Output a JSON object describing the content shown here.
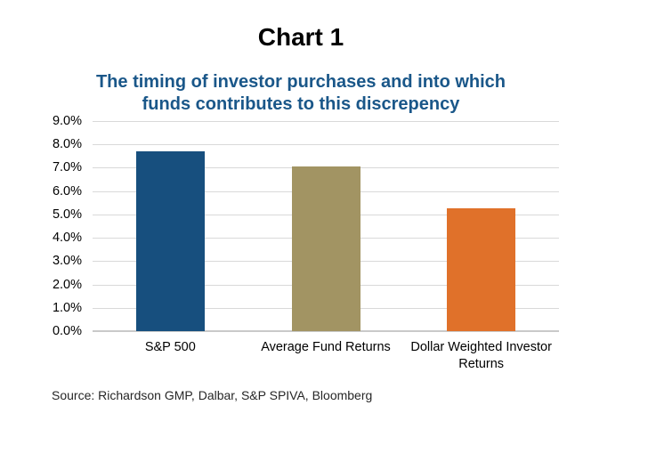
{
  "page": {
    "title": "Chart 1",
    "subtitle": "The timing of investor purchases and into which funds contributes to this discrepency",
    "source_note": "Source: Richardson GMP, Dalbar, S&P SPIVA, Bloomberg"
  },
  "colors": {
    "background": "#FFFFFF",
    "title_text": "#000000",
    "subtitle_text": "#1A5789",
    "axis_text": "#000000",
    "gridline": "#D9D9D9",
    "axis_line": "#C9C9C9"
  },
  "chart_data": {
    "type": "bar",
    "title": "Chart 1",
    "subtitle": "The timing of investor purchases and into which funds contributes to this discrepency",
    "categories": [
      "S&P 500",
      "Average Fund Returns",
      "Dollar Weighted Investor Returns"
    ],
    "values": [
      7.7,
      7.05,
      5.25
    ],
    "unit": "%",
    "bar_colors": [
      "#174F7E",
      "#A29463",
      "#E0712A"
    ],
    "xlabel": "",
    "ylabel": "",
    "ylim": [
      0,
      9
    ],
    "y_tick_step": 1,
    "y_tick_labels": [
      "0.0%",
      "1.0%",
      "2.0%",
      "3.0%",
      "4.0%",
      "5.0%",
      "6.0%",
      "7.0%",
      "8.0%",
      "9.0%"
    ],
    "grid": true,
    "legend": false,
    "source": "Source: Richardson GMP, Dalbar, S&P SPIVA, Bloomberg"
  }
}
